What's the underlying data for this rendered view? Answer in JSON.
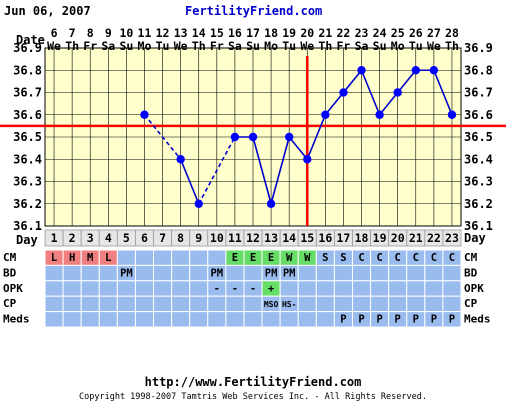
{
  "header": {
    "date": "Jun 06, 2007",
    "site": "FertilityFriend.com"
  },
  "footer": {
    "url": "http://www.FertilityFriend.com",
    "copyright": "Copyright 1998-2007 Tamtris Web Services Inc. - All Rights Reserved."
  },
  "labels": {
    "date": "Date",
    "day": "Day",
    "rows": [
      "CM",
      "BD",
      "OPK",
      "CP",
      "Meds"
    ]
  },
  "chart_data": {
    "type": "line",
    "dates": [
      "6",
      "7",
      "8",
      "9",
      "10",
      "11",
      "12",
      "13",
      "14",
      "15",
      "16",
      "17",
      "18",
      "19",
      "20",
      "21",
      "22",
      "23",
      "24",
      "25",
      "26",
      "27",
      "28"
    ],
    "weekdays": [
      "We",
      "Th",
      "Fr",
      "Sa",
      "Su",
      "Mo",
      "Tu",
      "We",
      "Th",
      "Fr",
      "Sa",
      "Su",
      "Mo",
      "Tu",
      "We",
      "Th",
      "Fr",
      "Sa",
      "Su",
      "Mo",
      "Tu",
      "We",
      "Th"
    ],
    "days": [
      1,
      2,
      3,
      4,
      5,
      6,
      7,
      8,
      9,
      10,
      11,
      12,
      13,
      14,
      15,
      16,
      17,
      18,
      19,
      20,
      21,
      22,
      23
    ],
    "y_ticks": [
      "36.9",
      "36.8",
      "36.7",
      "36.6",
      "36.5",
      "36.4",
      "36.3",
      "36.2",
      "36.1"
    ],
    "ylim": [
      36.1,
      36.9
    ],
    "temps": [
      null,
      null,
      null,
      null,
      null,
      36.6,
      null,
      36.4,
      36.2,
      null,
      36.5,
      36.5,
      36.2,
      36.5,
      36.4,
      36.6,
      36.7,
      36.8,
      36.6,
      36.7,
      36.8,
      36.8,
      36.6
    ],
    "dashed_segments": [
      [
        6,
        8
      ],
      [
        9,
        11
      ]
    ],
    "coverline": 36.55,
    "ovulation_day": 15,
    "line_color": "#0000cc",
    "marker_color": "#0000ff",
    "marker_line_color": "#ff0000",
    "plot_background": "#ffffcc",
    "row_background": "#99bbee",
    "cm": [
      "L",
      "H",
      "M",
      "L",
      "",
      "",
      "",
      "",
      "",
      "",
      "E",
      "E",
      "E",
      "W",
      "W",
      "S",
      "S",
      "C",
      "C",
      "C",
      "C",
      "C",
      "C"
    ],
    "cm_colors": {
      "L": "#f08080",
      "H": "#f08080",
      "M": "#f08080",
      "E": "#66dd66",
      "W": "#66dd66"
    },
    "bd": [
      "",
      "",
      "",
      "",
      "PM",
      "",
      "",
      "",
      "",
      "PM",
      "",
      "",
      "PM",
      "PM",
      "",
      "",
      "",
      "",
      "",
      "",
      "",
      "",
      ""
    ],
    "opk": [
      "",
      "",
      "",
      "",
      "",
      "",
      "",
      "",
      "",
      "-",
      "-",
      "-",
      "+",
      "",
      "",
      "",
      "",
      "",
      "",
      "",
      "",
      "",
      ""
    ],
    "cp": [
      "",
      "",
      "",
      "",
      "",
      "",
      "",
      "",
      "",
      "",
      "",
      "",
      "MSO",
      "HS-",
      "",
      "",
      "",
      "",
      "",
      "",
      "",
      "",
      ""
    ],
    "meds": [
      "",
      "",
      "",
      "",
      "",
      "",
      "",
      "",
      "",
      "",
      "",
      "",
      "",
      "",
      "",
      "",
      "P",
      "P",
      "P",
      "P",
      "P",
      "P",
      "P"
    ]
  }
}
